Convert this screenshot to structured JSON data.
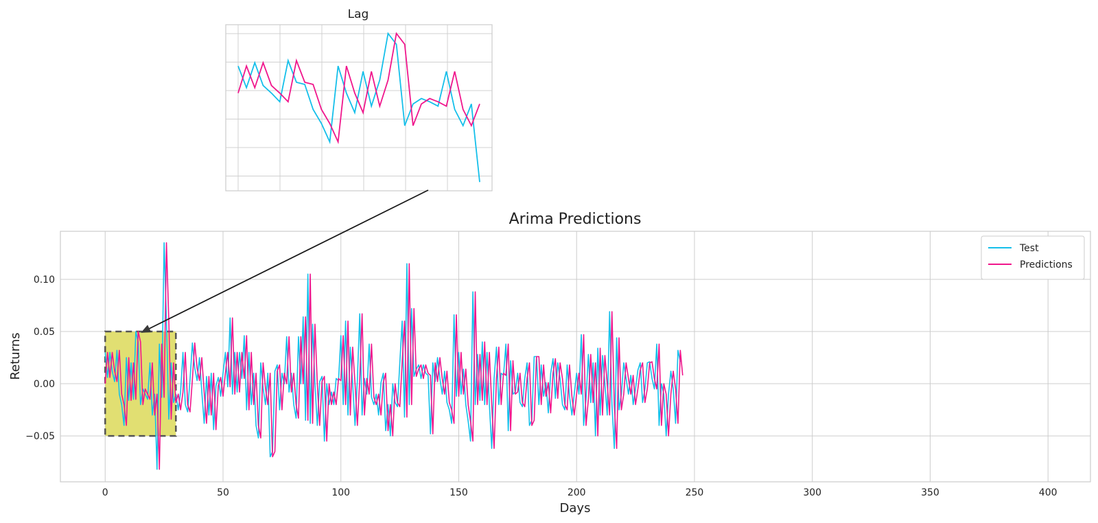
{
  "chart_data": {
    "type": "line",
    "title": "Arima Predictions",
    "xlabel": "Days",
    "ylabel": "Returns",
    "xlim": [
      -19,
      418
    ],
    "ylim": [
      -0.094,
      0.146
    ],
    "xticks": [
      0,
      50,
      100,
      150,
      200,
      250,
      300,
      350,
      400
    ],
    "yticks": [
      -0.05,
      0.0,
      0.05,
      0.1
    ],
    "ytick_labels": [
      "−0.05",
      "0.00",
      "0.05",
      "0.10"
    ],
    "grid": true,
    "legend_position": "top-right",
    "series": [
      {
        "name": "Test",
        "color": "#14bfea",
        "values": [
          0.03,
          0.006,
          0.03,
          0.012,
          0.002,
          0.032,
          -0.01,
          -0.02,
          -0.04,
          0.025,
          -0.016,
          0.02,
          -0.015,
          0.05,
          0.04,
          -0.02,
          -0.005,
          -0.01,
          -0.015,
          0.02,
          -0.03,
          -0.01,
          -0.082,
          0.038,
          -0.013,
          0.135,
          0.06,
          -0.034,
          0.02,
          -0.018,
          -0.01,
          -0.025,
          -0.008,
          0.03,
          -0.02,
          -0.027,
          0.004,
          0.039,
          0.015,
          0.003,
          0.025,
          -0.008,
          -0.038,
          0.007,
          -0.03,
          0.01,
          -0.044,
          -0.002,
          0.006,
          -0.012,
          0.01,
          0.03,
          -0.003,
          0.063,
          -0.01,
          0.03,
          -0.008,
          0.03,
          0.005,
          0.046,
          -0.025,
          0.03,
          -0.02,
          0.01,
          -0.04,
          -0.052,
          0.02,
          -0.004,
          -0.02,
          0.01,
          -0.07,
          -0.065,
          0.012,
          0.018,
          -0.025,
          0.01,
          0.0,
          0.045,
          -0.008,
          0.01,
          -0.02,
          -0.033,
          0.045,
          0.0,
          0.064,
          -0.035,
          0.105,
          -0.038,
          0.057,
          0.0,
          -0.04,
          0.002,
          0.007,
          -0.055,
          0.0,
          -0.02,
          -0.008,
          -0.02,
          0.005,
          0.003,
          0.046,
          -0.02,
          0.06,
          -0.03,
          0.035,
          0.0,
          -0.04,
          0.004,
          0.067,
          -0.03,
          0.005,
          -0.01,
          0.038,
          -0.013,
          -0.02,
          -0.01,
          -0.03,
          0.001,
          0.01,
          -0.045,
          -0.02,
          -0.05,
          0.0,
          -0.018,
          -0.022,
          0.02,
          0.06,
          -0.032,
          0.115,
          -0.02,
          0.072,
          0.007,
          0.014,
          0.018,
          0.005,
          0.018,
          0.01,
          0.008,
          -0.048,
          0.02,
          0.002,
          0.025,
          0.005,
          -0.01,
          0.012,
          -0.018,
          -0.025,
          -0.038,
          0.066,
          -0.012,
          0.03,
          -0.01,
          0.014,
          -0.02,
          -0.036,
          -0.055,
          0.088,
          -0.02,
          0.028,
          -0.016,
          0.04,
          -0.02,
          0.03,
          -0.02,
          -0.062,
          0.005,
          0.035,
          -0.02,
          0.01,
          0.008,
          0.038,
          -0.045,
          0.022,
          -0.01,
          -0.008,
          0.01,
          -0.018,
          -0.022,
          0.005,
          0.02,
          -0.04,
          -0.035,
          0.026,
          0.026,
          -0.02,
          0.018,
          -0.012,
          0.001,
          -0.028,
          0.01,
          0.024,
          -0.014,
          0.02,
          0.005,
          -0.02,
          -0.025,
          0.018,
          -0.012,
          -0.03,
          -0.01,
          0.01,
          -0.01,
          0.047,
          -0.04,
          -0.015,
          0.028,
          -0.018,
          0.02,
          -0.05,
          0.034,
          -0.03,
          0.027,
          0.0,
          -0.03,
          0.069,
          -0.02,
          -0.062,
          0.044,
          -0.025,
          -0.01,
          0.02,
          0.005,
          -0.01,
          0.008,
          -0.02,
          -0.005,
          0.013,
          0.02,
          -0.018,
          -0.005,
          0.02,
          0.021,
          0.005,
          -0.005,
          0.038,
          -0.04,
          0.0,
          -0.01,
          -0.05,
          -0.01,
          0.012,
          -0.005,
          -0.038,
          0.032,
          0.021
        ],
        "note_x_start": 0
      },
      {
        "name": "Predictions",
        "color": "#f0168c",
        "values": [
          0.0,
          0.03,
          0.006,
          0.03,
          0.012,
          0.002,
          0.032,
          -0.01,
          -0.02,
          -0.04,
          0.025,
          -0.016,
          0.02,
          -0.015,
          0.05,
          0.04,
          -0.02,
          -0.005,
          -0.01,
          -0.015,
          0.02,
          -0.03,
          -0.01,
          -0.082,
          0.038,
          -0.013,
          0.135,
          0.06,
          -0.034,
          0.02,
          -0.018,
          -0.01,
          -0.025,
          -0.008,
          0.03,
          -0.02,
          -0.027,
          0.004,
          0.039,
          0.015,
          0.003,
          0.025,
          -0.008,
          -0.038,
          0.007,
          -0.03,
          0.01,
          -0.044,
          -0.002,
          0.006,
          -0.012,
          0.01,
          0.03,
          -0.003,
          0.063,
          -0.01,
          0.03,
          -0.008,
          0.03,
          0.005,
          0.046,
          -0.025,
          0.03,
          -0.02,
          0.01,
          -0.04,
          -0.052,
          0.02,
          -0.004,
          -0.02,
          0.01,
          -0.07,
          -0.065,
          0.012,
          0.018,
          -0.025,
          0.01,
          0.0,
          0.045,
          -0.008,
          0.01,
          -0.02,
          -0.033,
          0.045,
          0.0,
          0.064,
          -0.035,
          0.105,
          -0.038,
          0.057,
          0.0,
          -0.04,
          0.002,
          0.007,
          -0.055,
          0.0,
          -0.02,
          -0.008,
          -0.02,
          0.005,
          0.003,
          0.046,
          -0.02,
          0.06,
          -0.03,
          0.035,
          0.0,
          -0.04,
          0.004,
          0.067,
          -0.03,
          0.005,
          -0.01,
          0.038,
          -0.013,
          -0.02,
          -0.01,
          -0.03,
          0.001,
          0.01,
          -0.045,
          -0.02,
          -0.05,
          0.0,
          -0.018,
          -0.022,
          0.02,
          0.06,
          -0.032,
          0.115,
          -0.02,
          0.072,
          0.007,
          0.014,
          0.018,
          0.005,
          0.018,
          0.01,
          0.008,
          -0.048,
          0.02,
          0.002,
          0.025,
          0.005,
          -0.01,
          0.012,
          -0.018,
          -0.025,
          -0.038,
          0.066,
          -0.012,
          0.03,
          -0.01,
          0.014,
          -0.02,
          -0.036,
          -0.055,
          0.088,
          -0.02,
          0.028,
          -0.016,
          0.04,
          -0.02,
          0.03,
          -0.02,
          -0.062,
          0.005,
          0.035,
          -0.02,
          0.01,
          0.008,
          0.038,
          -0.045,
          0.022,
          -0.01,
          -0.008,
          0.01,
          -0.018,
          -0.022,
          0.005,
          0.02,
          -0.04,
          -0.035,
          0.026,
          0.026,
          -0.02,
          0.018,
          -0.012,
          0.001,
          -0.028,
          0.01,
          0.024,
          -0.014,
          0.02,
          0.005,
          -0.02,
          -0.025,
          0.018,
          -0.012,
          -0.03,
          -0.01,
          0.01,
          -0.01,
          0.047,
          -0.04,
          -0.015,
          0.028,
          -0.018,
          0.02,
          -0.05,
          0.034,
          -0.03,
          0.027,
          0.0,
          -0.03,
          0.069,
          -0.02,
          -0.062,
          0.044,
          -0.025,
          -0.01,
          0.02,
          0.005,
          -0.01,
          0.008,
          -0.02,
          -0.005,
          0.013,
          0.02,
          -0.018,
          -0.005,
          0.02,
          0.021,
          0.005,
          -0.005,
          0.038,
          -0.04,
          0.0,
          -0.01,
          -0.05,
          -0.01,
          0.012,
          -0.005,
          -0.038,
          0.032,
          0.008
        ]
      }
    ],
    "highlight_region": {
      "x": [
        0,
        30
      ],
      "y": [
        -0.05,
        0.05
      ],
      "color": "#d8d64a"
    },
    "inset": {
      "title": "Lag",
      "x_range": [
        0,
        30
      ],
      "y_range": [
        -0.085,
        0.058
      ],
      "test": [
        0.025,
        0.005,
        0.028,
        0.007,
        0.0,
        -0.008,
        0.03,
        0.01,
        0.008,
        -0.015,
        -0.028,
        -0.045,
        0.025,
        0.0,
        -0.018,
        0.02,
        -0.012,
        0.012,
        0.055,
        0.045,
        -0.03,
        -0.01,
        -0.005,
        -0.008,
        -0.012,
        0.02,
        -0.015,
        -0.03,
        -0.01,
        -0.082
      ],
      "pred": [
        0.0,
        0.025,
        0.005,
        0.028,
        0.007,
        0.0,
        -0.008,
        0.03,
        0.01,
        0.008,
        -0.015,
        -0.028,
        -0.045,
        0.025,
        0.0,
        -0.018,
        0.02,
        -0.012,
        0.012,
        0.055,
        0.045,
        -0.03,
        -0.01,
        -0.005,
        -0.008,
        -0.012,
        0.02,
        -0.015,
        -0.03,
        -0.01
      ]
    }
  }
}
